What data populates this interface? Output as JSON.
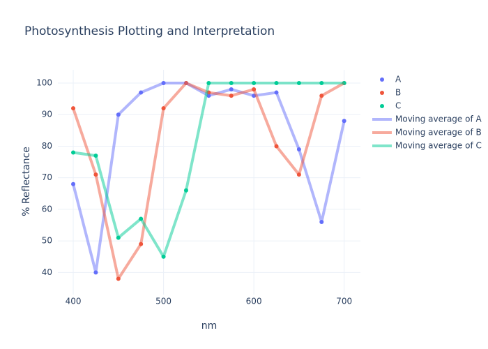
{
  "chart_data": {
    "type": "line",
    "title": "Photosynthesis Plotting and Interpretation",
    "x_label": "nm",
    "y_label": "% Reflectance",
    "x": [
      400,
      425,
      450,
      475,
      500,
      525,
      550,
      575,
      600,
      625,
      650,
      675,
      700
    ],
    "series": [
      {
        "name": "A",
        "color": "#636efa",
        "mode": "markers",
        "values": [
          68,
          40,
          90,
          97,
          100,
          100,
          96,
          98,
          96,
          97,
          79,
          56,
          88
        ]
      },
      {
        "name": "B",
        "color": "#ef553b",
        "mode": "markers",
        "values": [
          92,
          71,
          38,
          49,
          92,
          100,
          97,
          96,
          98,
          80,
          71,
          96,
          100
        ]
      },
      {
        "name": "C",
        "color": "#00cc96",
        "mode": "markers",
        "values": [
          78,
          77,
          51,
          57,
          45,
          66,
          100,
          100,
          100,
          100,
          100,
          100,
          100
        ]
      },
      {
        "name": "Moving average of A",
        "color": "#636efa",
        "mode": "lines",
        "values": [
          68,
          40,
          90,
          97,
          100,
          100,
          96,
          98,
          96,
          97,
          79,
          56,
          88
        ]
      },
      {
        "name": "Moving average of B",
        "color": "#ef553b",
        "mode": "lines",
        "values": [
          92,
          71,
          38,
          49,
          92,
          100,
          97,
          96,
          98,
          80,
          71,
          96,
          100
        ]
      },
      {
        "name": "Moving average of C",
        "color": "#00cc96",
        "mode": "lines",
        "values": [
          78,
          77,
          51,
          57,
          45,
          66,
          100,
          100,
          100,
          100,
          100,
          100,
          100
        ]
      }
    ],
    "xlim": [
      383,
      718
    ],
    "xticks": [
      400,
      500,
      600,
      700
    ],
    "ylim": [
      33,
      104.2
    ],
    "yticks": [
      40,
      50,
      60,
      70,
      80,
      90,
      100
    ],
    "grid": true,
    "legend": "right"
  }
}
